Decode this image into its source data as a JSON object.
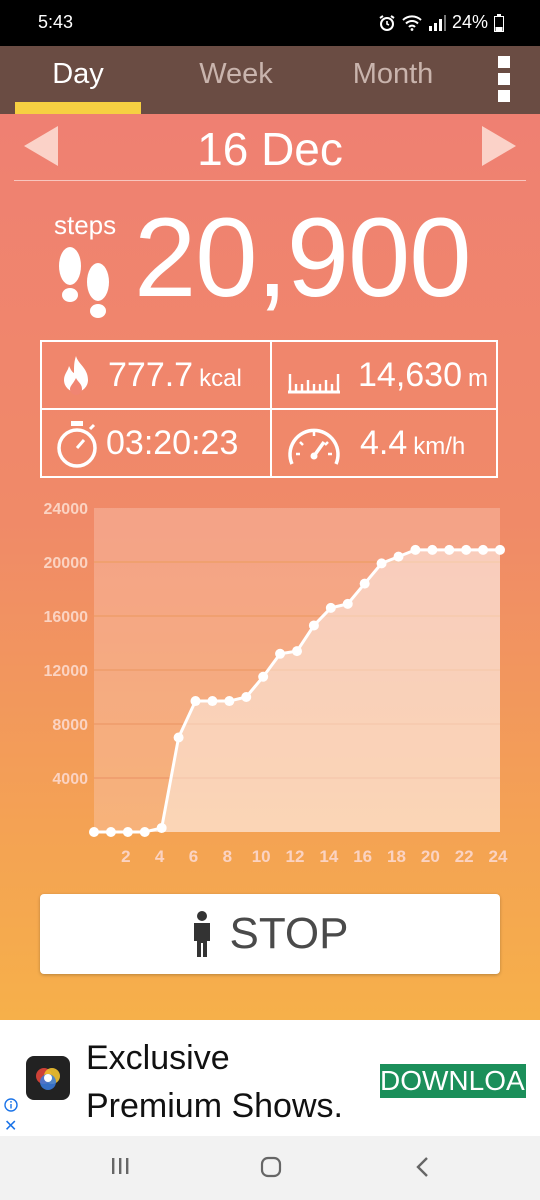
{
  "status": {
    "time": "5:43",
    "battery": "24%"
  },
  "tabs": [
    {
      "label": "Day",
      "active": true
    },
    {
      "label": "Week",
      "active": false
    },
    {
      "label": "Month",
      "active": false
    }
  ],
  "date": "16 Dec",
  "steps": {
    "label": "steps",
    "value": "20,900"
  },
  "stats": {
    "calories": {
      "value": "777.7",
      "unit": "kcal"
    },
    "distance": {
      "value": "14,630",
      "unit": "m"
    },
    "duration": {
      "value": "03:20:23"
    },
    "speed": {
      "value": "4.4",
      "unit": "km/h"
    }
  },
  "chart_data": {
    "type": "area",
    "title": "",
    "xlabel": "",
    "ylabel": "",
    "xlim": [
      0,
      24
    ],
    "ylim": [
      0,
      24000
    ],
    "y_ticks": [
      4000,
      8000,
      12000,
      16000,
      20000,
      24000
    ],
    "x_ticks": [
      2,
      4,
      6,
      8,
      10,
      12,
      14,
      16,
      18,
      20,
      22,
      24
    ],
    "x": [
      0,
      1,
      2,
      3,
      4,
      5,
      6,
      7,
      8,
      9,
      10,
      11,
      12,
      13,
      14,
      15,
      16,
      17,
      18,
      19,
      20,
      21,
      22,
      23,
      24
    ],
    "values": [
      0,
      0,
      0,
      0,
      300,
      7000,
      9700,
      9700,
      9700,
      10000,
      11500,
      13200,
      13400,
      15300,
      16600,
      16900,
      18400,
      19900,
      20400,
      20900,
      20900,
      20900,
      20900,
      20900,
      20900
    ],
    "colors": {
      "line": "#ffffff",
      "fill": "#ffffff",
      "grid": "#f0a070",
      "tick": "#fbd3c2"
    }
  },
  "stop_button": {
    "label": "STOP"
  },
  "ad": {
    "line1": "Exclusive",
    "line2": "Premium Shows.",
    "button": "DOWNLOAD",
    "button_color": "#1b8f5a"
  }
}
